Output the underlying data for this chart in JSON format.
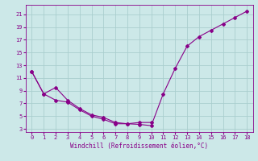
{
  "xlabel": "Windchill (Refroidissement éolien,°C)",
  "xlim": [
    -0.5,
    18.5
  ],
  "ylim": [
    2.5,
    22.5
  ],
  "xticks": [
    0,
    1,
    2,
    3,
    4,
    5,
    6,
    7,
    8,
    9,
    10,
    11,
    12,
    13,
    14,
    15,
    16,
    17,
    18
  ],
  "yticks": [
    3,
    5,
    7,
    9,
    11,
    13,
    15,
    17,
    19,
    21
  ],
  "bg_color": "#cce8e8",
  "line_color": "#880088",
  "grid_color": "#aacece",
  "line1_x": [
    0,
    1,
    2,
    3,
    4,
    5,
    6,
    7,
    8,
    9,
    10,
    11,
    12,
    13,
    14,
    15,
    16,
    17,
    18
  ],
  "line1_y": [
    12,
    8.5,
    9.5,
    7.5,
    6.2,
    5.2,
    4.8,
    4.0,
    3.8,
    3.7,
    3.5,
    8.5,
    12.5,
    16.0,
    17.5,
    18.5,
    19.5,
    20.5,
    21.5
  ],
  "line2_x": [
    0,
    1,
    2,
    3,
    4,
    5,
    6,
    7,
    8,
    9,
    10
  ],
  "line2_y": [
    12,
    8.5,
    7.5,
    7.2,
    6.0,
    5.0,
    4.5,
    3.8,
    3.8,
    4.0,
    4.0
  ],
  "tick_fontsize": 5,
  "label_fontsize": 5.5,
  "linewidth": 0.8,
  "markersize": 2.0
}
